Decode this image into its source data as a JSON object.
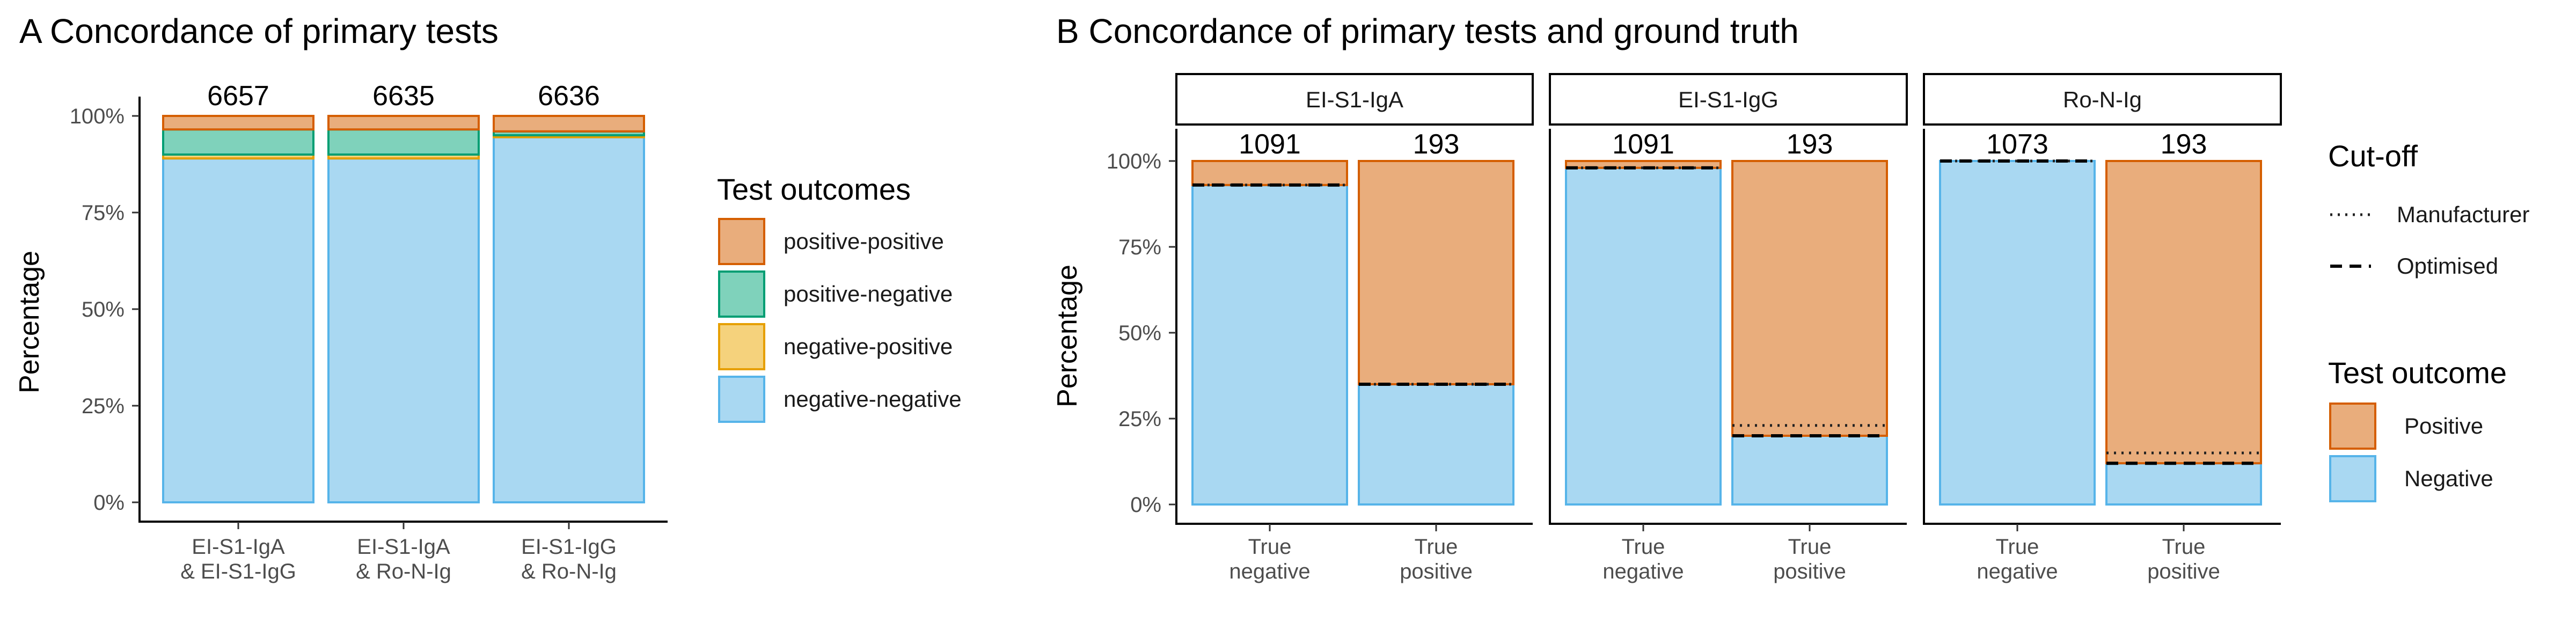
{
  "chart_data": [
    {
      "type": "bar",
      "panel": "A",
      "title": "A Concordance of primary tests",
      "ylabel": "Percentage",
      "ylim": [
        0,
        100
      ],
      "yticks": [
        "0%",
        "25%",
        "50%",
        "75%",
        "100%"
      ],
      "categories": [
        "EI-S1-IgA\n& EI-S1-IgG",
        "EI-S1-IgA\n& Ro-N-Ig",
        "EI-S1-IgG\n& Ro-N-Ig"
      ],
      "counts": [
        "6657",
        "6635",
        "6636"
      ],
      "legend_title": "Test outcomes",
      "series": [
        {
          "name": "negative-negative",
          "values": [
            89,
            89,
            94.5
          ]
        },
        {
          "name": "negative-positive",
          "values": [
            1,
            1,
            0.5
          ]
        },
        {
          "name": "positive-negative",
          "values": [
            6.5,
            6.5,
            1
          ]
        },
        {
          "name": "positive-positive",
          "values": [
            3.5,
            3.5,
            4
          ]
        }
      ]
    },
    {
      "type": "bar",
      "panel": "B",
      "title": "B Concordance of primary tests and ground truth",
      "ylabel": "Percentage",
      "ylim": [
        0,
        100
      ],
      "yticks": [
        "0%",
        "25%",
        "50%",
        "75%",
        "100%"
      ],
      "facets": [
        {
          "label": "EI-S1-IgA",
          "categories": [
            "True\nnegative",
            "True\npositive"
          ],
          "counts": [
            "1091",
            "193"
          ],
          "negative": [
            93,
            35
          ],
          "positive": [
            7,
            65
          ],
          "manufacturer_cutoff": [
            93,
            35
          ],
          "optimised_cutoff": [
            93,
            35
          ]
        },
        {
          "label": "EI-S1-IgG",
          "categories": [
            "True\nnegative",
            "True\npositive"
          ],
          "counts": [
            "1091",
            "193"
          ],
          "negative": [
            98,
            20
          ],
          "positive": [
            2,
            80
          ],
          "manufacturer_cutoff": [
            98,
            23
          ],
          "optimised_cutoff": [
            98,
            20
          ]
        },
        {
          "label": "Ro-N-Ig",
          "categories": [
            "True\nnegative",
            "True\npositive"
          ],
          "counts": [
            "1073",
            "193"
          ],
          "negative": [
            100,
            12
          ],
          "positive": [
            0,
            88
          ],
          "manufacturer_cutoff": [
            100,
            15
          ],
          "optimised_cutoff": [
            100,
            12
          ]
        }
      ],
      "legend_cutoff_title": "Cut-off",
      "legend_cutoff": [
        "Manufacturer",
        "Optimised"
      ],
      "legend_outcome_title": "Test outcome",
      "legend_outcome": [
        "Positive",
        "Negative"
      ]
    }
  ],
  "colors": {
    "positive_positive_fill": "#e9ad7c",
    "positive_positive_stroke": "#d55e00",
    "positive_negative_fill": "#7fd2bb",
    "positive_negative_stroke": "#009e73",
    "negative_positive_fill": "#f5d27c",
    "negative_positive_stroke": "#e69f00",
    "negative_negative_fill": "#a9d8f2",
    "negative_negative_stroke": "#56b4e9"
  }
}
